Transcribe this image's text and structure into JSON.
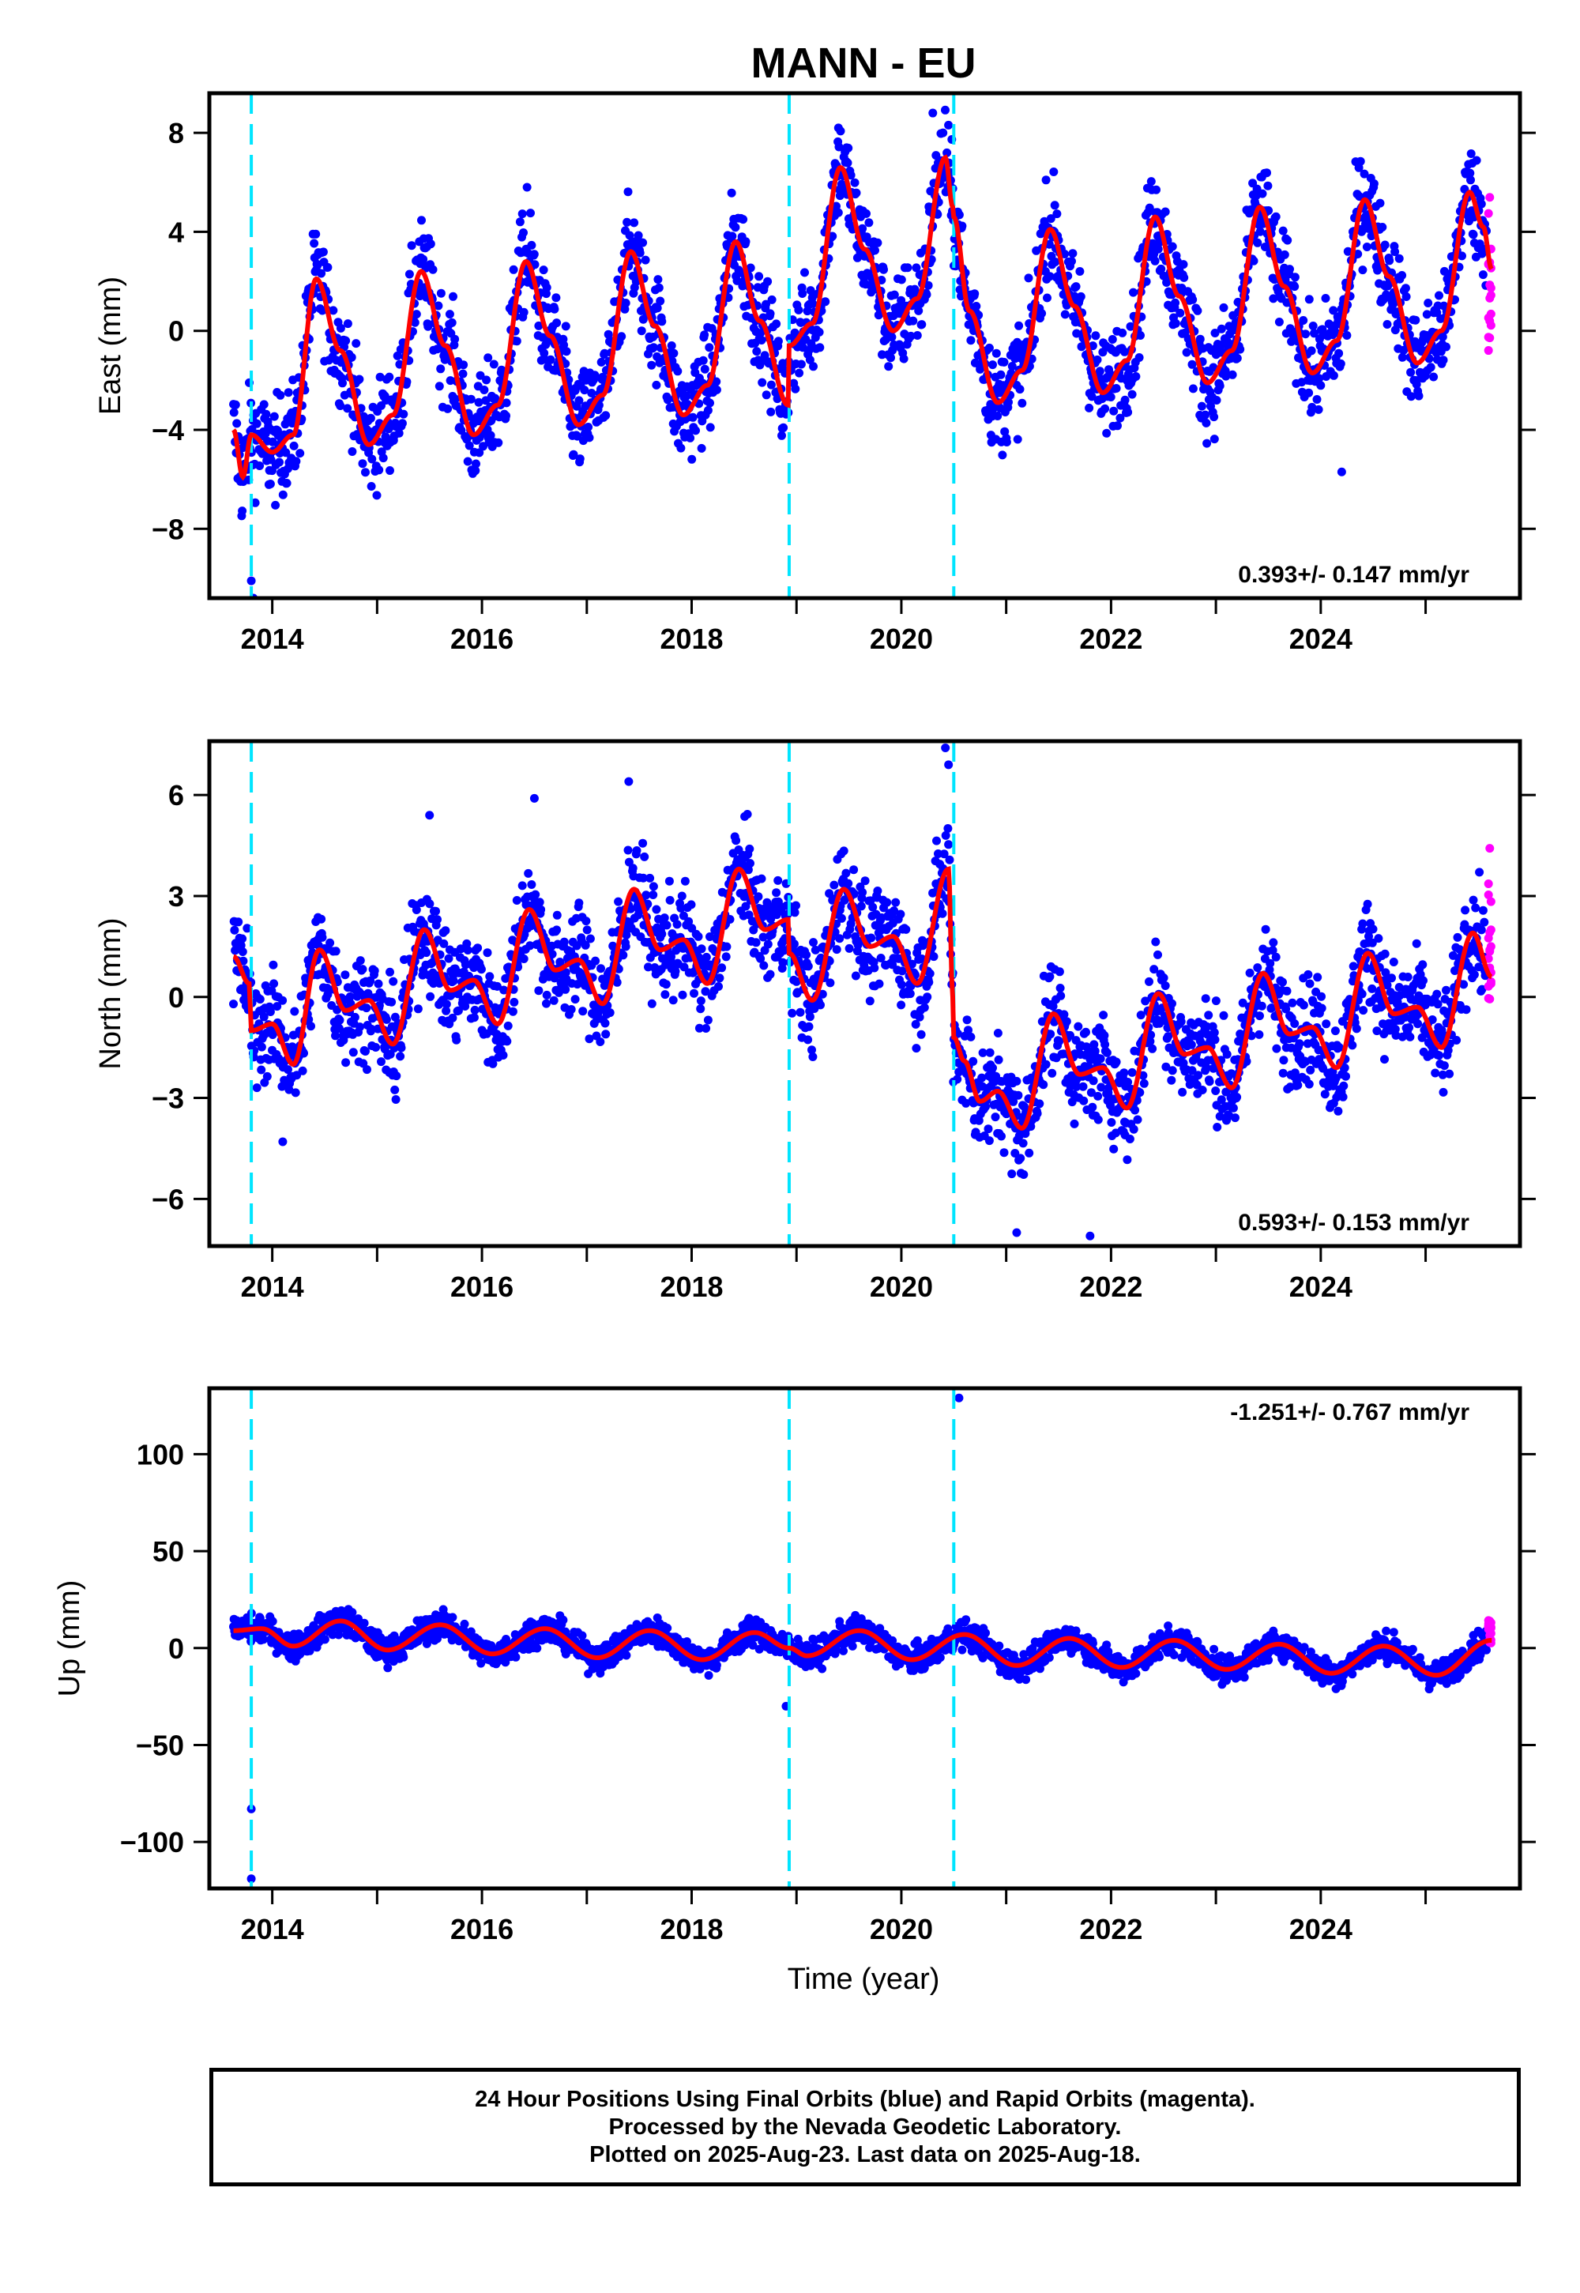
{
  "chart_data": {
    "type": "scatter",
    "title": "MANN - EU",
    "xlabel": "Time (year)",
    "x_tick_labels": [
      "2014",
      "2016",
      "2018",
      "2020",
      "2022",
      "2024"
    ],
    "xlim": [
      2013.4,
      2025.9
    ],
    "step_epochs": [
      2013.8,
      2018.93,
      2020.5
    ],
    "panels": [
      {
        "ylabel": "East (mm)",
        "ylim": [
          -10.8,
          9.6
        ],
        "y_ticks": [
          -8,
          -4,
          0,
          4,
          8
        ],
        "y_tick_labels": [
          "−8",
          "−4",
          "0",
          "4",
          "8"
        ],
        "rate_label": "0.393+/- 0.147 mm/yr",
        "rate_position": "bottom-right",
        "model_knots": [
          [
            2013.63,
            -4.0
          ],
          [
            2013.72,
            -5.9
          ],
          [
            2013.8,
            -4.2
          ],
          [
            2014.0,
            -4.9
          ],
          [
            2014.2,
            -4.2
          ],
          [
            2014.42,
            2.1
          ],
          [
            2014.65,
            -0.8
          ],
          [
            2014.92,
            -4.6
          ],
          [
            2015.15,
            -3.4
          ],
          [
            2015.42,
            2.4
          ],
          [
            2015.65,
            -0.6
          ],
          [
            2015.92,
            -4.2
          ],
          [
            2016.15,
            -3.0
          ],
          [
            2016.42,
            2.8
          ],
          [
            2016.65,
            -0.2
          ],
          [
            2016.92,
            -3.8
          ],
          [
            2017.15,
            -2.6
          ],
          [
            2017.42,
            3.2
          ],
          [
            2017.65,
            0.2
          ],
          [
            2017.92,
            -3.4
          ],
          [
            2018.15,
            -2.2
          ],
          [
            2018.42,
            3.6
          ],
          [
            2018.65,
            0.4
          ],
          [
            2018.92,
            -3.0
          ],
          [
            2018.93,
            -0.6
          ],
          [
            2019.15,
            0.3
          ],
          [
            2019.42,
            6.6
          ],
          [
            2019.65,
            3.3
          ],
          [
            2019.92,
            0.0
          ],
          [
            2020.15,
            1.3
          ],
          [
            2020.42,
            7.0
          ],
          [
            2020.49,
            5.0
          ],
          [
            2020.5,
            4.6
          ],
          [
            2020.65,
            0.8
          ],
          [
            2020.92,
            -2.9
          ],
          [
            2021.15,
            -1.6
          ],
          [
            2021.42,
            4.1
          ],
          [
            2021.65,
            1.0
          ],
          [
            2021.92,
            -2.5
          ],
          [
            2022.15,
            -1.2
          ],
          [
            2022.42,
            4.6
          ],
          [
            2022.65,
            1.4
          ],
          [
            2022.92,
            -2.1
          ],
          [
            2023.15,
            -0.8
          ],
          [
            2023.42,
            5.0
          ],
          [
            2023.65,
            1.8
          ],
          [
            2023.92,
            -1.7
          ],
          [
            2024.15,
            -0.4
          ],
          [
            2024.42,
            5.3
          ],
          [
            2024.65,
            2.2
          ],
          [
            2024.92,
            -1.3
          ],
          [
            2025.15,
            0.0
          ],
          [
            2025.42,
            5.6
          ],
          [
            2025.55,
            4.2
          ],
          [
            2025.63,
            2.5
          ]
        ],
        "point_amp": 1.6,
        "outliers": [
          [
            2013.8,
            -10.1
          ],
          [
            2013.82,
            -10.8
          ],
          [
            2019.4,
            8.2
          ],
          [
            2020.3,
            8.8
          ],
          [
            2024.2,
            -5.7
          ],
          [
            2016.43,
            5.8
          ]
        ],
        "rapid_range": [
          -0.8,
          5.5
        ]
      },
      {
        "ylabel": "North (mm)",
        "ylim": [
          -7.4,
          7.6
        ],
        "y_ticks": [
          -6,
          -3,
          0,
          3,
          6
        ],
        "y_tick_labels": [
          "−6",
          "−3",
          "0",
          "3",
          "6"
        ],
        "rate_label": "0.593+/- 0.153 mm/yr",
        "rate_position": "bottom-right",
        "model_knots": [
          [
            2013.63,
            1.2
          ],
          [
            2013.78,
            0.4
          ],
          [
            2013.8,
            -1.0
          ],
          [
            2014.0,
            -0.8
          ],
          [
            2014.2,
            -2.0
          ],
          [
            2014.45,
            1.4
          ],
          [
            2014.7,
            -0.4
          ],
          [
            2014.92,
            -0.1
          ],
          [
            2015.15,
            -1.4
          ],
          [
            2015.45,
            2.0
          ],
          [
            2015.7,
            0.2
          ],
          [
            2015.92,
            0.5
          ],
          [
            2016.15,
            -0.8
          ],
          [
            2016.45,
            2.6
          ],
          [
            2016.7,
            0.8
          ],
          [
            2016.92,
            1.1
          ],
          [
            2017.15,
            -0.2
          ],
          [
            2017.45,
            3.2
          ],
          [
            2017.7,
            1.4
          ],
          [
            2017.92,
            1.7
          ],
          [
            2018.15,
            0.4
          ],
          [
            2018.45,
            3.8
          ],
          [
            2018.7,
            2.0
          ],
          [
            2018.92,
            2.3
          ],
          [
            2018.93,
            1.3
          ],
          [
            2019.15,
            -0.1
          ],
          [
            2019.45,
            3.2
          ],
          [
            2019.7,
            1.5
          ],
          [
            2019.92,
            1.8
          ],
          [
            2020.15,
            0.4
          ],
          [
            2020.45,
            3.8
          ],
          [
            2020.49,
            0.0
          ],
          [
            2020.5,
            -1.2
          ],
          [
            2020.6,
            -1.9
          ],
          [
            2020.75,
            -3.1
          ],
          [
            2020.92,
            -2.8
          ],
          [
            2021.15,
            -3.9
          ],
          [
            2021.45,
            -0.5
          ],
          [
            2021.7,
            -2.3
          ],
          [
            2021.92,
            -2.1
          ],
          [
            2022.15,
            -3.3
          ],
          [
            2022.45,
            0.1
          ],
          [
            2022.7,
            -1.7
          ],
          [
            2022.92,
            -1.5
          ],
          [
            2023.15,
            -2.7
          ],
          [
            2023.45,
            0.7
          ],
          [
            2023.7,
            -1.1
          ],
          [
            2023.92,
            -0.9
          ],
          [
            2024.15,
            -2.1
          ],
          [
            2024.45,
            1.3
          ],
          [
            2024.7,
            -0.5
          ],
          [
            2024.92,
            -0.3
          ],
          [
            2025.15,
            -1.5
          ],
          [
            2025.45,
            1.9
          ],
          [
            2025.63,
            0.6
          ]
        ],
        "point_amp": 1.2,
        "outliers": [
          [
            2020.42,
            7.4
          ],
          [
            2020.45,
            6.9
          ],
          [
            2016.5,
            5.9
          ],
          [
            2021.1,
            -7.0
          ],
          [
            2021.8,
            -7.1
          ],
          [
            2015.5,
            5.4
          ],
          [
            2017.4,
            6.4
          ],
          [
            2014.1,
            -4.3
          ]
        ],
        "rapid_range": [
          -0.3,
          4.5
        ]
      },
      {
        "ylabel": "Up (mm)",
        "ylim": [
          -124,
          134
        ],
        "y_ticks": [
          -100,
          -50,
          0,
          50,
          100
        ],
        "y_tick_labels": [
          "−100",
          "−50",
          "0",
          "50",
          "100"
        ],
        "rate_label": "-1.251+/- 0.767 mm/yr",
        "rate_position": "top-right",
        "model_knots": [
          [
            2013.63,
            9
          ],
          [
            2013.9,
            10
          ],
          [
            2014.2,
            1
          ],
          [
            2014.65,
            14
          ],
          [
            2015.1,
            -1
          ],
          [
            2015.6,
            12
          ],
          [
            2016.1,
            -3
          ],
          [
            2016.6,
            10
          ],
          [
            2017.1,
            -5
          ],
          [
            2017.6,
            9
          ],
          [
            2018.1,
            -6
          ],
          [
            2018.6,
            8
          ],
          [
            2018.93,
            0
          ],
          [
            2019.1,
            -4
          ],
          [
            2019.6,
            9
          ],
          [
            2020.1,
            -6
          ],
          [
            2020.6,
            7
          ],
          [
            2021.1,
            -9
          ],
          [
            2021.6,
            5
          ],
          [
            2022.1,
            -10
          ],
          [
            2022.6,
            4
          ],
          [
            2023.1,
            -11
          ],
          [
            2023.6,
            2
          ],
          [
            2024.1,
            -13
          ],
          [
            2024.6,
            1
          ],
          [
            2025.1,
            -14
          ],
          [
            2025.63,
            4
          ]
        ],
        "point_amp": 5.5,
        "outliers": [
          [
            2020.55,
            129
          ],
          [
            2013.8,
            -83
          ],
          [
            2013.8,
            -119
          ],
          [
            2018.9,
            -30
          ]
        ],
        "rapid_range": [
          2,
          15
        ]
      }
    ],
    "series": [
      {
        "name": "Final Orbits",
        "color": "#0000ff"
      },
      {
        "name": "Rapid Orbits",
        "color": "#ff00ff"
      },
      {
        "name": "model",
        "color": "#ff0000"
      }
    ],
    "step_color": "#00e5ff",
    "grid": false
  },
  "caption": {
    "line1": "24 Hour Positions Using Final Orbits (blue) and Rapid Orbits (magenta).",
    "line2": "Processed by the Nevada Geodetic Laboratory.",
    "line3": "Plotted on 2025-Aug-23. Last data on 2025-Aug-18."
  }
}
